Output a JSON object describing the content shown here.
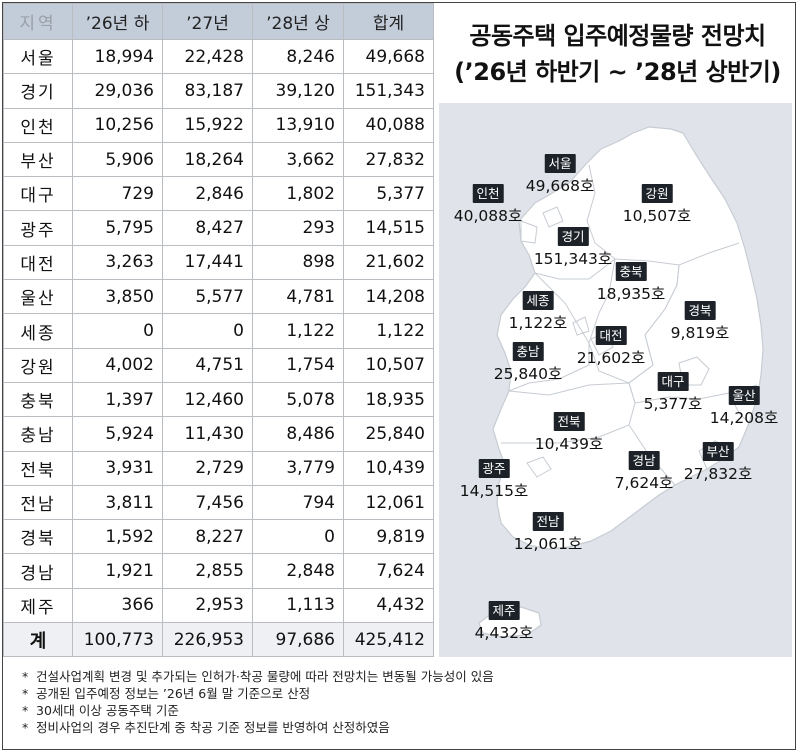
{
  "title": {
    "line1": "공동주택 입주예정물량 전망치",
    "line2": "(’26년 하반기 ~ ’28년 상반기)"
  },
  "table": {
    "headers": [
      "지역",
      "’26년 하",
      "’27년",
      "’28년 상",
      "합계"
    ],
    "rows": [
      [
        "서울",
        "18,994",
        "22,428",
        "8,246",
        "49,668"
      ],
      [
        "경기",
        "29,036",
        "83,187",
        "39,120",
        "151,343"
      ],
      [
        "인천",
        "10,256",
        "15,922",
        "13,910",
        "40,088"
      ],
      [
        "부산",
        "5,906",
        "18,264",
        "3,662",
        "27,832"
      ],
      [
        "대구",
        "729",
        "2,846",
        "1,802",
        "5,377"
      ],
      [
        "광주",
        "5,795",
        "8,427",
        "293",
        "14,515"
      ],
      [
        "대전",
        "3,263",
        "17,441",
        "898",
        "21,602"
      ],
      [
        "울산",
        "3,850",
        "5,577",
        "4,781",
        "14,208"
      ],
      [
        "세종",
        "0",
        "0",
        "1,122",
        "1,122"
      ],
      [
        "강원",
        "4,002",
        "4,751",
        "1,754",
        "10,507"
      ],
      [
        "충북",
        "1,397",
        "12,460",
        "5,078",
        "18,935"
      ],
      [
        "충남",
        "5,924",
        "11,430",
        "8,486",
        "25,840"
      ],
      [
        "전북",
        "3,931",
        "2,729",
        "3,779",
        "10,439"
      ],
      [
        "전남",
        "3,811",
        "7,456",
        "794",
        "12,061"
      ],
      [
        "경북",
        "1,592",
        "8,227",
        "0",
        "9,819"
      ],
      [
        "경남",
        "1,921",
        "2,855",
        "2,848",
        "7,624"
      ],
      [
        "제주",
        "366",
        "2,953",
        "1,113",
        "4,432"
      ]
    ],
    "total": [
      "계",
      "100,773",
      "226,953",
      "97,686",
      "425,412"
    ]
  },
  "chart_data": {
    "type": "table",
    "title": "공동주택 입주예정물량 전망치 (’26년 하반기 ~ ’28년 상반기)",
    "columns": [
      "’26년 하",
      "’27년",
      "’28년 상",
      "합계"
    ],
    "categories": [
      "서울",
      "경기",
      "인천",
      "부산",
      "대구",
      "광주",
      "대전",
      "울산",
      "세종",
      "강원",
      "충북",
      "충남",
      "전북",
      "전남",
      "경북",
      "경남",
      "제주"
    ],
    "series": [
      {
        "name": "’26년 하",
        "values": [
          18994,
          29036,
          10256,
          5906,
          729,
          5795,
          3263,
          3850,
          0,
          4002,
          1397,
          5924,
          3931,
          3811,
          1592,
          1921,
          366
        ]
      },
      {
        "name": "’27년",
        "values": [
          22428,
          83187,
          15922,
          18264,
          2846,
          8427,
          17441,
          5577,
          0,
          4751,
          12460,
          11430,
          2729,
          7456,
          8227,
          2855,
          2953
        ]
      },
      {
        "name": "’28년 상",
        "values": [
          8246,
          39120,
          13910,
          3662,
          1802,
          293,
          898,
          4781,
          1122,
          1754,
          5078,
          8486,
          3779,
          794,
          0,
          2848,
          1113
        ]
      },
      {
        "name": "합계",
        "values": [
          49668,
          151343,
          40088,
          27832,
          5377,
          14515,
          21602,
          14208,
          1122,
          10507,
          18935,
          25840,
          10439,
          12061,
          9819,
          7624,
          4432
        ]
      }
    ],
    "totals": {
      "’26년 하": 100773,
      "’27년": 226953,
      "’28년 상": 97686,
      "합계": 425412
    }
  },
  "map": {
    "labels": [
      {
        "name": "서울",
        "value": "49,668호"
      },
      {
        "name": "인천",
        "value": "40,088호"
      },
      {
        "name": "강원",
        "value": "10,507호"
      },
      {
        "name": "경기",
        "value": "151,343호"
      },
      {
        "name": "충북",
        "value": "18,935호"
      },
      {
        "name": "세종",
        "value": "1,122호"
      },
      {
        "name": "경북",
        "value": "9,819호"
      },
      {
        "name": "대전",
        "value": "21,602호"
      },
      {
        "name": "충남",
        "value": "25,840호"
      },
      {
        "name": "대구",
        "value": "5,377호"
      },
      {
        "name": "울산",
        "value": "14,208호"
      },
      {
        "name": "전북",
        "value": "10,439호"
      },
      {
        "name": "광주",
        "value": "14,515호"
      },
      {
        "name": "경남",
        "value": "7,624호"
      },
      {
        "name": "부산",
        "value": "27,832호"
      },
      {
        "name": "전남",
        "value": "12,061호"
      },
      {
        "name": "제주",
        "value": "4,432호"
      }
    ]
  },
  "notes": [
    "건설사업계획 변경 및 추가되는 인허가·착공 물량에 따라 전망치는 변동될 가능성이 있음",
    "공개된 입주예정 정보는 ’26년 6월 말 기준으로 산정",
    "30세대 이상 공동주택 기준",
    "정비사업의 경우 추진단계 중 착공 기준 정보를 반영하여 산정하였음"
  ],
  "colors": {
    "header_bg": "#c3ccd9",
    "map_bg": "#e0e4ea",
    "land": "#ffffff",
    "border": "#c7ccd3",
    "label_bg": "#1d2229"
  }
}
